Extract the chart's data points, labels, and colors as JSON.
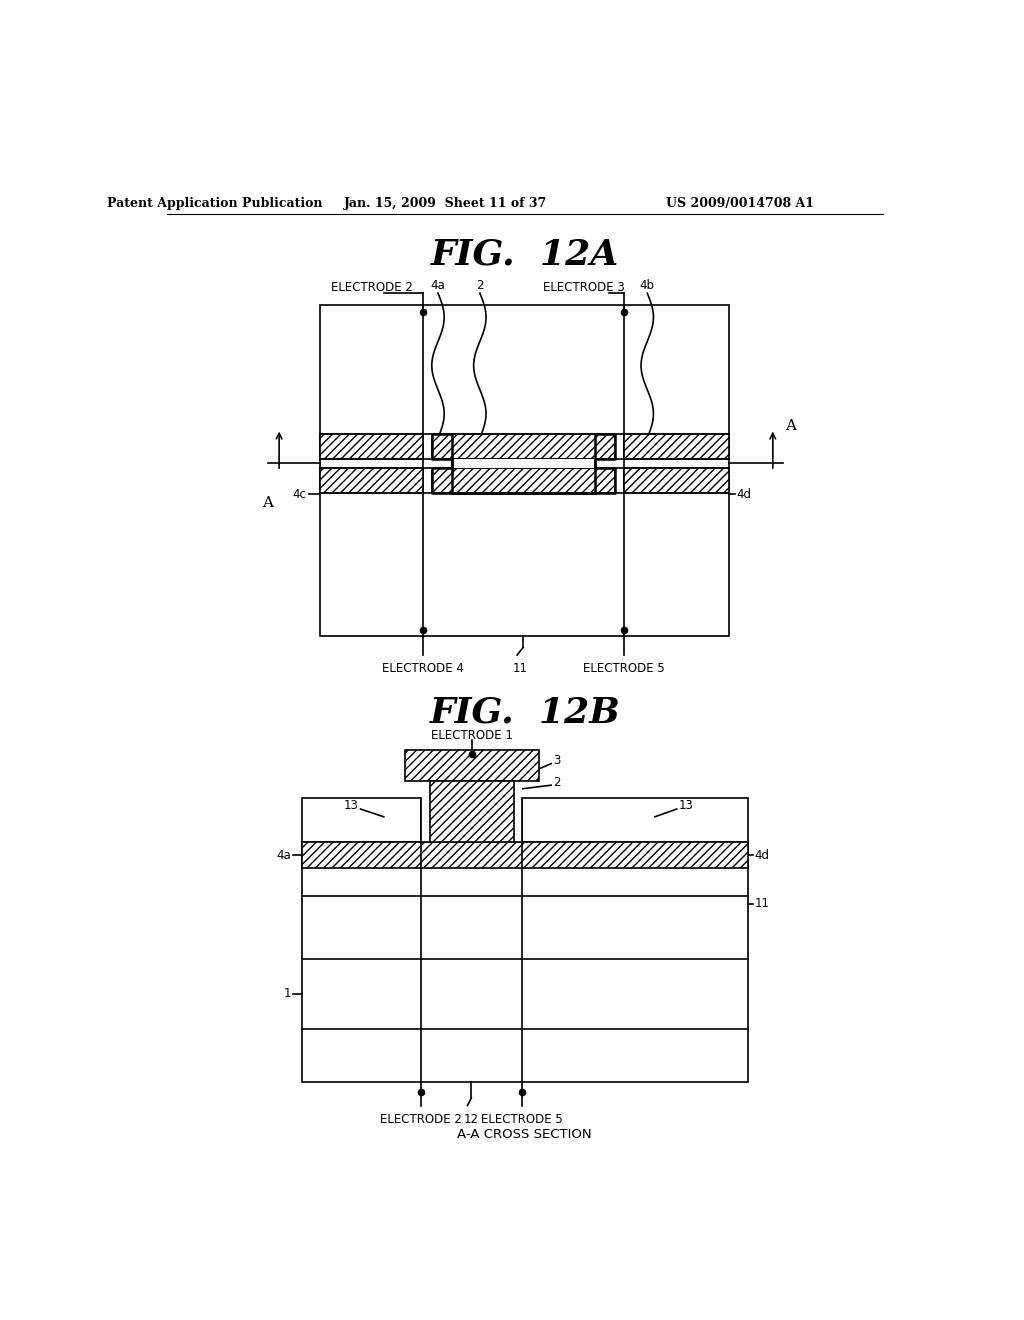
{
  "bg_color": "#ffffff",
  "header_text": "Patent Application Publication",
  "header_date": "Jan. 15, 2009  Sheet 11 of 37",
  "header_patent": "US 2009/0014708 A1",
  "fig12a_title": "FIG.  12A",
  "fig12b_title": "FIG.  12B",
  "fig12b_subtitle": "A-A CROSS SECTION",
  "hatch_pattern": "////",
  "line_color": "#000000"
}
